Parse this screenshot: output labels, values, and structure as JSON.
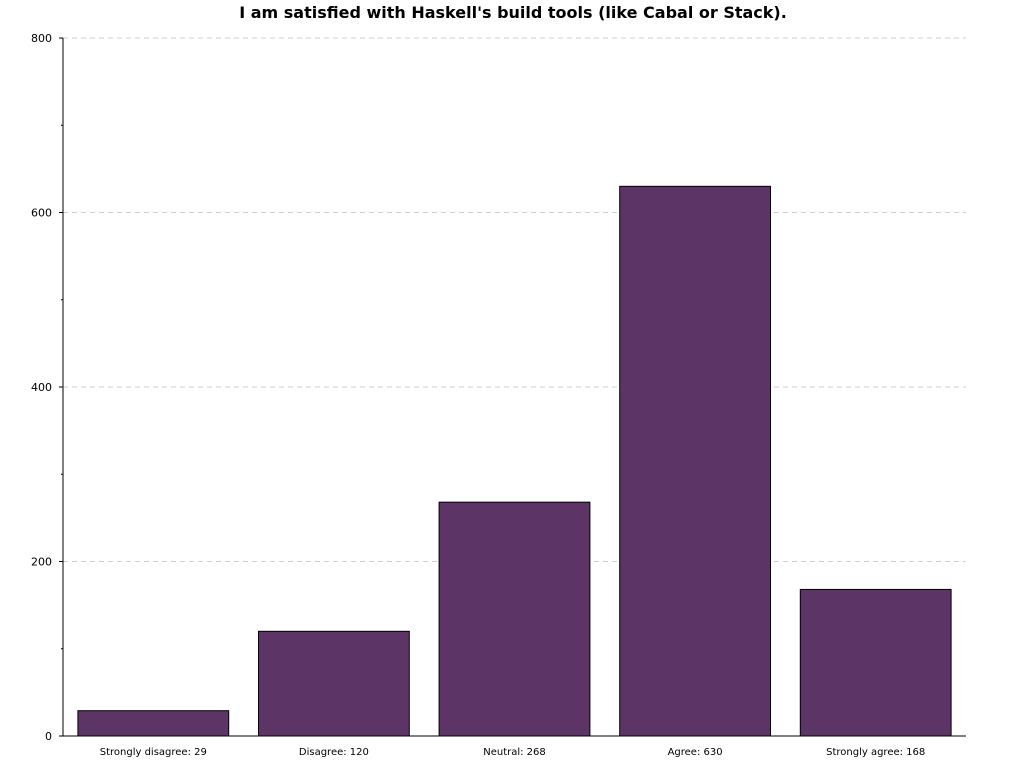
{
  "chart_data": {
    "type": "bar",
    "title": "I am satisfied with Haskell's build tools (like Cabal or Stack).",
    "xlabel": "",
    "ylabel": "",
    "categories": [
      "Strongly disagree",
      "Disagree",
      "Neutral",
      "Agree",
      "Strongly agree"
    ],
    "category_labels": [
      "Strongly disagree: 29",
      "Disagree: 120",
      "Neutral: 268",
      "Agree: 630",
      "Strongly agree: 168"
    ],
    "values": [
      29,
      120,
      268,
      630,
      168
    ],
    "ylim": [
      0,
      800
    ],
    "yticks": [
      0,
      200,
      400,
      600,
      800
    ],
    "ytick_labels": [
      "0",
      "200",
      "400",
      "600",
      "800"
    ],
    "minor_yticks": [
      100,
      300,
      500,
      700
    ],
    "grid": true,
    "legend": "none",
    "bar_color": "#5c3566"
  }
}
